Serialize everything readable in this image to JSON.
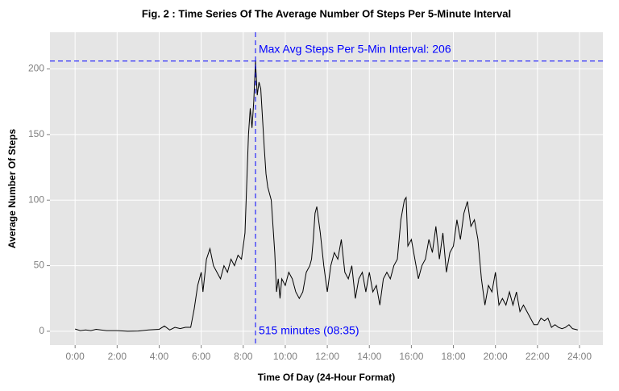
{
  "chart_data": {
    "type": "line",
    "title": "Fig. 2 : Time Series Of The Average Number Of Steps Per 5-Minute Interval",
    "x_label": "Time Of Day (24-Hour Format)",
    "y_label": "Average Number Of Steps",
    "x": [
      0,
      15,
      30,
      45,
      60,
      90,
      120,
      150,
      180,
      210,
      240,
      255,
      270,
      285,
      300,
      315,
      330,
      340,
      350,
      360,
      365,
      375,
      385,
      395,
      405,
      415,
      425,
      435,
      445,
      455,
      465,
      475,
      485,
      495,
      500,
      505,
      510,
      515,
      520,
      525,
      530,
      540,
      545,
      550,
      560,
      570,
      575,
      580,
      585,
      590,
      600,
      610,
      620,
      630,
      640,
      650,
      660,
      670,
      675,
      680,
      685,
      690,
      700,
      710,
      720,
      730,
      740,
      750,
      760,
      770,
      780,
      790,
      800,
      810,
      820,
      830,
      840,
      850,
      860,
      870,
      880,
      890,
      900,
      910,
      920,
      930,
      940,
      945,
      950,
      960,
      970,
      980,
      990,
      1000,
      1010,
      1020,
      1030,
      1040,
      1050,
      1060,
      1070,
      1080,
      1090,
      1100,
      1110,
      1120,
      1130,
      1140,
      1150,
      1160,
      1170,
      1180,
      1190,
      1200,
      1210,
      1220,
      1230,
      1240,
      1250,
      1260,
      1270,
      1280,
      1290,
      1300,
      1310,
      1320,
      1330,
      1340,
      1350,
      1360,
      1370,
      1380,
      1390,
      1400,
      1410,
      1420,
      1435
    ],
    "series": [
      {
        "name": "Average Steps",
        "color": "#000000",
        "values": [
          1.7,
          0.5,
          1,
          0.5,
          1.5,
          0.5,
          0.5,
          0,
          0.2,
          1,
          1.5,
          4,
          1,
          3,
          2,
          3,
          3,
          17,
          35,
          45,
          30,
          55,
          63,
          50,
          45,
          40,
          50,
          45,
          55,
          50,
          58,
          55,
          75,
          150,
          170,
          155,
          175,
          206,
          180,
          190,
          185,
          140,
          120,
          110,
          100,
          60,
          30,
          40,
          25,
          40,
          35,
          45,
          40,
          30,
          25,
          30,
          45,
          50,
          55,
          70,
          90,
          95,
          75,
          50,
          30,
          50,
          60,
          55,
          70,
          45,
          40,
          50,
          25,
          40,
          45,
          30,
          45,
          30,
          35,
          20,
          40,
          45,
          40,
          50,
          55,
          85,
          100,
          102,
          65,
          70,
          55,
          40,
          50,
          55,
          70,
          60,
          80,
          55,
          75,
          45,
          60,
          65,
          85,
          70,
          90,
          99,
          80,
          85,
          70,
          40,
          20,
          35,
          30,
          45,
          20,
          25,
          20,
          30,
          20,
          30,
          15,
          20,
          15,
          10,
          5,
          5,
          10,
          8,
          10,
          3,
          5,
          3,
          2,
          3,
          5,
          2,
          1
        ]
      }
    ],
    "xlim": [
      -71.75,
      1506.75
    ],
    "ylim": [
      -10.5,
      228
    ],
    "xticks": [
      {
        "value": 0,
        "label": "0:00"
      },
      {
        "value": 120,
        "label": "2:00"
      },
      {
        "value": 240,
        "label": "4:00"
      },
      {
        "value": 360,
        "label": "6:00"
      },
      {
        "value": 480,
        "label": "8:00"
      },
      {
        "value": 600,
        "label": "10:00"
      },
      {
        "value": 720,
        "label": "12:00"
      },
      {
        "value": 840,
        "label": "14:00"
      },
      {
        "value": 960,
        "label": "16:00"
      },
      {
        "value": 1080,
        "label": "18:00"
      },
      {
        "value": 1200,
        "label": "20:00"
      },
      {
        "value": 1320,
        "label": "22:00"
      },
      {
        "value": 1440,
        "label": "24:00"
      }
    ],
    "yticks": [
      0,
      50,
      100,
      150,
      200
    ],
    "grid": true,
    "reference_lines": {
      "x": 515,
      "y": 206,
      "color": "#0000ff"
    },
    "annotations": {
      "max_label": "Max Avg Steps Per 5-Min Interval: 206",
      "interval_label": "515 minutes (08:35)"
    }
  }
}
